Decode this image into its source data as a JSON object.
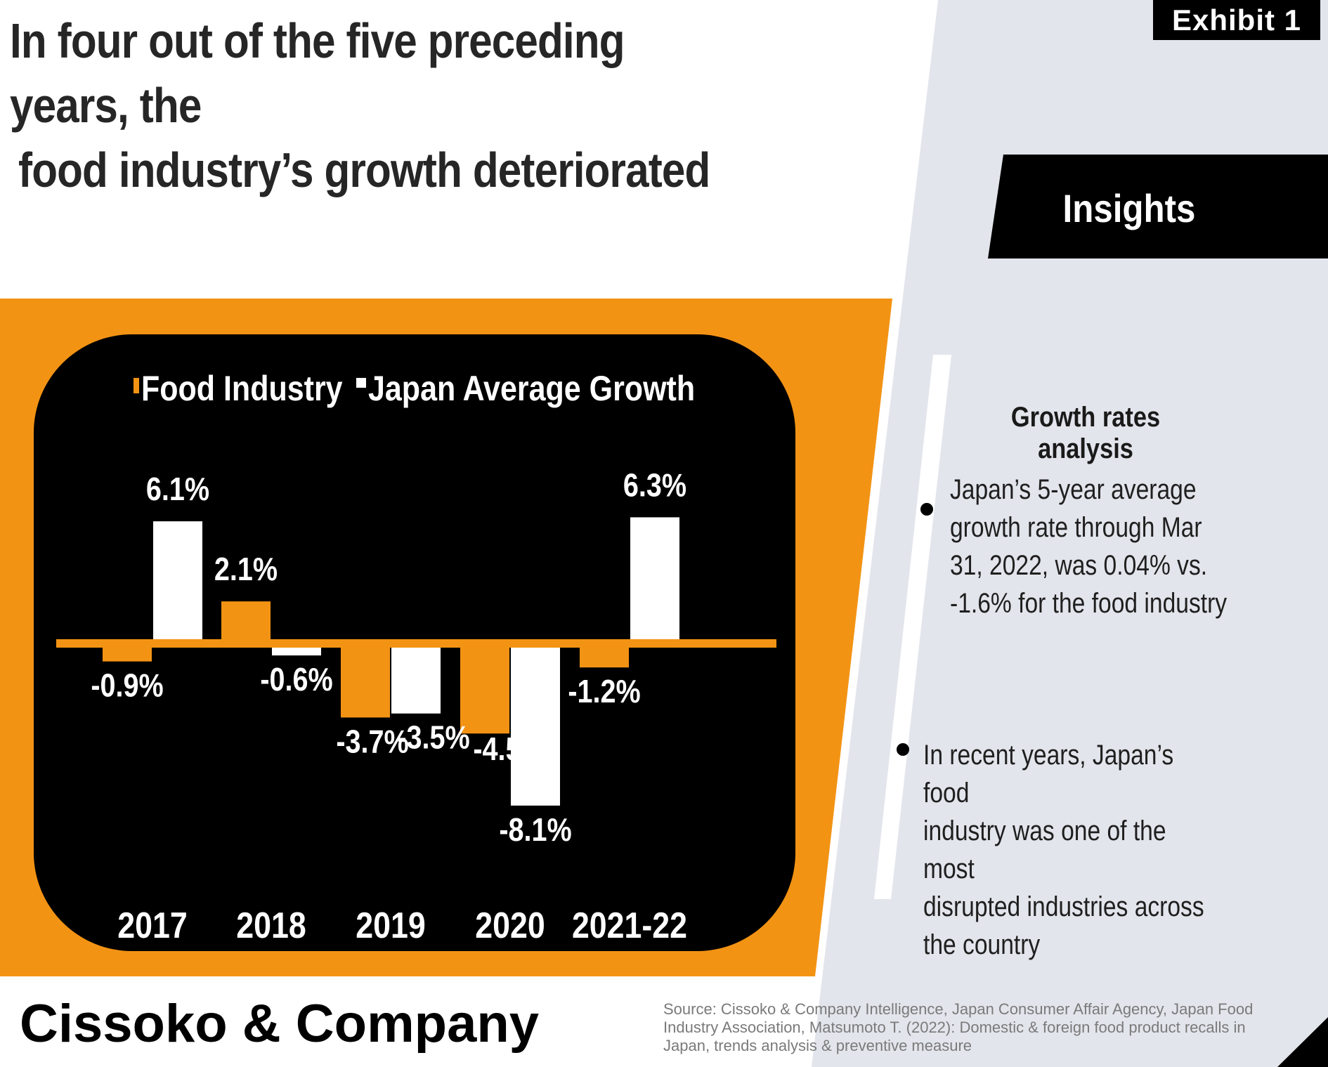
{
  "header": {
    "headline_line1": "In four out of the five preceding years, the",
    "headline_line2": "food industry’s growth deteriorated",
    "exhibit_label": "Exhibit  1"
  },
  "insights": {
    "title": "Insights",
    "subtitle": "Growth rates analysis",
    "bullets": [
      "Japan’s 5-year average growth rate through Mar 31, 2022, was 0.04% vs. -1.6% for the food industry",
      "In recent years, Japan’s food industry was one of the most disrupted industries across the country"
    ],
    "bullet_lines": [
      [
        "Japan’s 5-year average",
        "growth rate through Mar",
        "31, 2022, was 0.04% vs.",
        "-1.6% for the food industry"
      ],
      [
        "In recent years, Japan’s food",
        "industry was one of the most",
        "disrupted industries across",
        "the country"
      ]
    ]
  },
  "footer": {
    "brand": "Cissoko & Company",
    "source_line1": "Source: Cissoko & Company Intelligence, Japan Consumer Affair Agency, Japan Food",
    "source_line2": "Industry Association, Matsumoto T. (2022): Domestic & foreign food product recalls in",
    "source_line3": "Japan, trends analysis & preventive measure"
  },
  "colors": {
    "orange": "#f39314",
    "black": "#000000",
    "white": "#ffffff",
    "panel_gray": "#e3e5ec",
    "text_dark": "#262626",
    "source_gray": "#7a7a7a"
  },
  "chart_data": {
    "type": "bar",
    "categories": [
      "2017",
      "2018",
      "2019",
      "2020",
      "2021-22"
    ],
    "series": [
      {
        "name": "Food Industry",
        "color": "#f39314",
        "values": [
          -0.9,
          2.1,
          -3.7,
          -4.5,
          -1.2
        ]
      },
      {
        "name": "Japan Average Growth",
        "color": "#ffffff",
        "values": [
          6.1,
          -0.6,
          -3.5,
          -8.1,
          6.3
        ]
      }
    ],
    "data_labels": [
      [
        "-0.9%",
        "2.1%",
        "-3.7%",
        "-4.5%",
        "-1.2%"
      ],
      [
        "6.1%",
        "-0.6%",
        "-3.5%",
        "-8.1%",
        "6.3%"
      ]
    ],
    "legend_position": "top",
    "grid": false,
    "title": "",
    "xlabel": "",
    "ylabel": ""
  }
}
